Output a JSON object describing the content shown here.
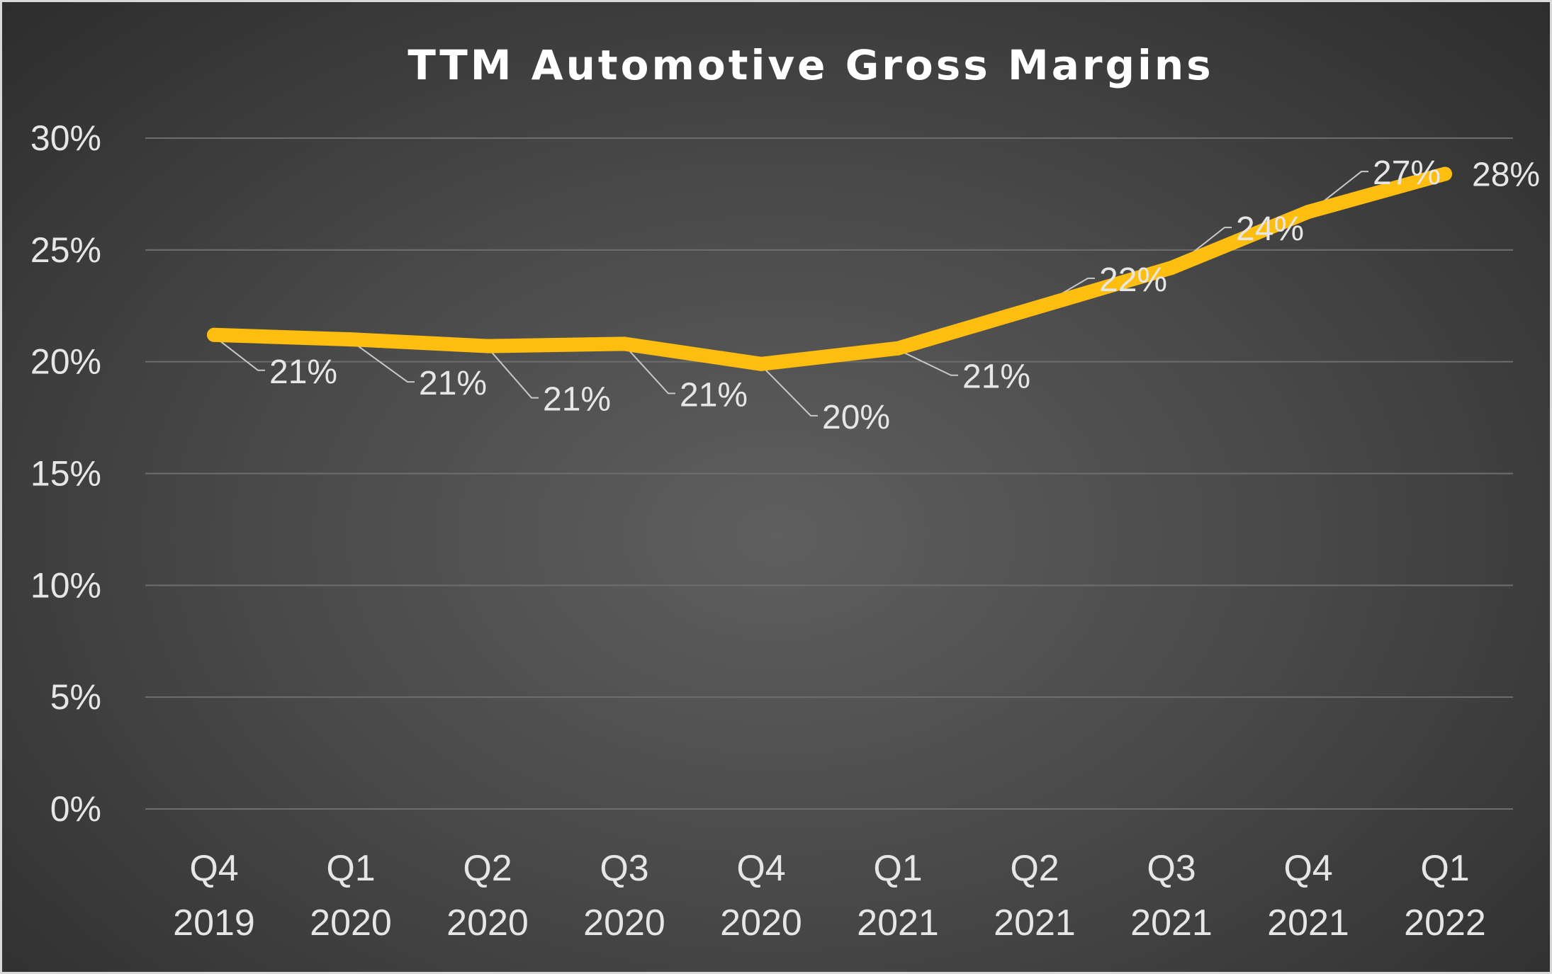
{
  "chart_data": {
    "type": "line",
    "title": "TTM Automotive Gross Margins",
    "categories": [
      [
        "Q4",
        "2019"
      ],
      [
        "Q1",
        "2020"
      ],
      [
        "Q2",
        "2020"
      ],
      [
        "Q3",
        "2020"
      ],
      [
        "Q4",
        "2020"
      ],
      [
        "Q1",
        "2021"
      ],
      [
        "Q2",
        "2021"
      ],
      [
        "Q3",
        "2021"
      ],
      [
        "Q4",
        "2021"
      ],
      [
        "Q1",
        "2022"
      ]
    ],
    "series": [
      {
        "values": [
          21.2,
          21.0,
          20.7,
          20.8,
          19.9,
          20.6,
          22.4,
          24.2,
          26.7,
          28.4
        ],
        "data_labels": [
          "21%",
          "21%",
          "21%",
          "21%",
          "20%",
          "21%",
          "22%",
          "24%",
          "27%",
          "28%"
        ],
        "color": "#fdbe10"
      }
    ],
    "ylim": [
      0,
      30
    ],
    "yticks": [
      0,
      5,
      10,
      15,
      20,
      25,
      30
    ],
    "ytick_labels": [
      "0%",
      "5%",
      "10%",
      "15%",
      "20%",
      "25%",
      "30%"
    ],
    "xlabel": "",
    "ylabel": "",
    "grid": true,
    "legend": "none",
    "background": "#4a4a4a"
  }
}
